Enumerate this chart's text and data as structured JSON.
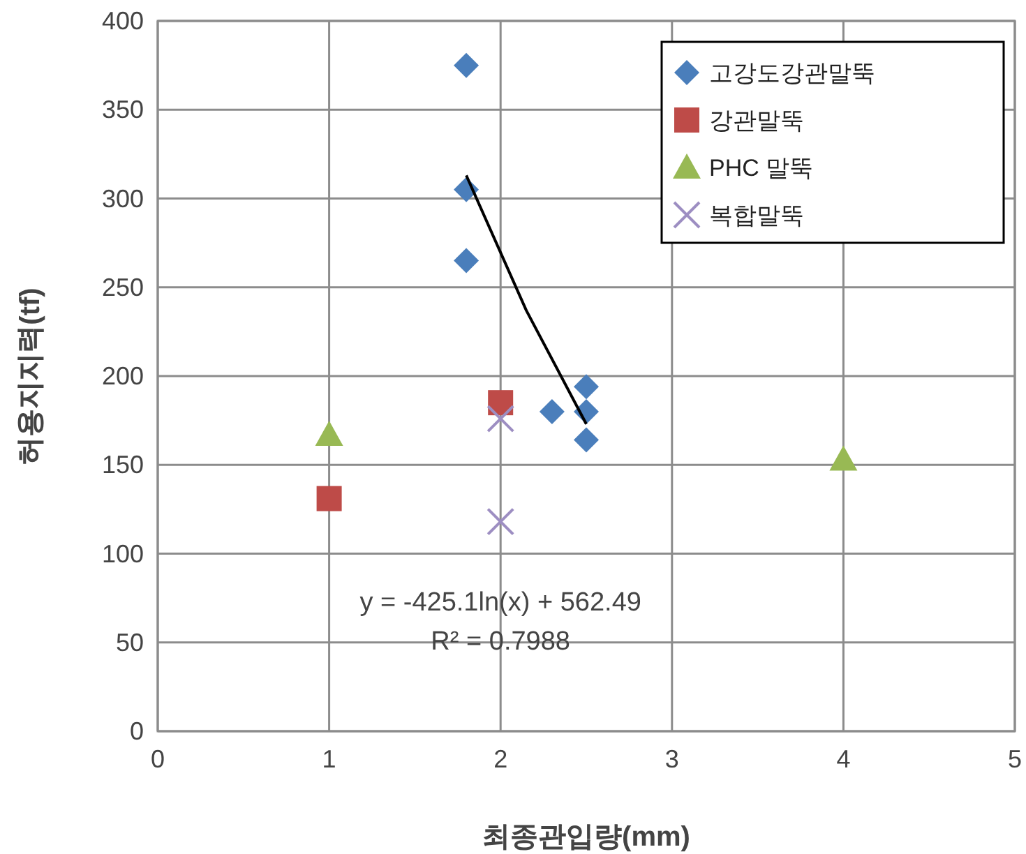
{
  "chart_data": {
    "type": "scatter",
    "xlabel": "최종관입량(mm)",
    "ylabel": "허용지지력(tf)",
    "xlim": [
      0,
      5
    ],
    "xticks": [
      0,
      1,
      2,
      3,
      4,
      5
    ],
    "ylim": [
      0,
      400
    ],
    "yticks": [
      0,
      50,
      100,
      150,
      200,
      250,
      300,
      350,
      400
    ],
    "grid": true,
    "legend": "top right",
    "series": [
      {
        "name": "고강도강관말뚝",
        "color": "#4a7ebb",
        "marker": "diamond",
        "x": [
          1.8,
          1.8,
          1.8,
          2.3,
          2.5,
          2.5,
          2.5
        ],
        "values": [
          375,
          305,
          265,
          180,
          194,
          180,
          164
        ]
      },
      {
        "name": "강관말뚝",
        "color": "#be4b48",
        "marker": "square",
        "x": [
          1,
          2
        ],
        "values": [
          131,
          185
        ]
      },
      {
        "name": "PHC 말뚝",
        "color": "#98b954",
        "marker": "triangle",
        "x": [
          1,
          4
        ],
        "values": [
          167,
          153
        ]
      },
      {
        "name": "복합말뚝",
        "color": "#9d8ec2",
        "marker": "cross",
        "x": [
          2,
          2
        ],
        "values": [
          176,
          118
        ]
      },
      {
        "type": "line",
        "color": "#000000",
        "x": [
          1.8,
          2.15,
          2.5
        ],
        "values": [
          313,
          237,
          173
        ]
      }
    ],
    "annotations": [
      "y = -425.1ln(x) + 562.49",
      "R² = 0.7988"
    ]
  }
}
